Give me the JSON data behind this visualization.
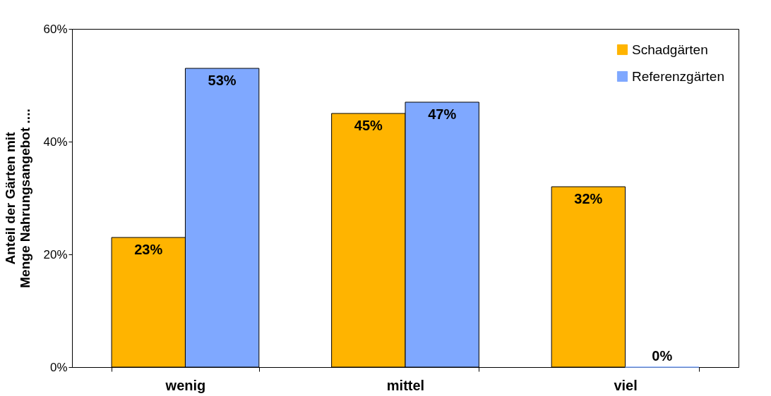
{
  "chart_data": {
    "type": "bar",
    "ylabel": "Anteil der Gärten mit\nMenge Nahrungsangebot ....",
    "categories": [
      "wenig",
      "mittel",
      "viel"
    ],
    "series": [
      {
        "name": "Schadgärten",
        "color": "#ffb400",
        "values": [
          23,
          45,
          32
        ],
        "value_labels": [
          "23%",
          "45%",
          "32%"
        ]
      },
      {
        "name": "Referenzgärten",
        "color": "#7fa8ff",
        "values": [
          53,
          47,
          0
        ],
        "value_labels": [
          "53%",
          "47%",
          "0%"
        ]
      }
    ],
    "ylim": [
      0,
      60
    ],
    "yticks": [
      {
        "value": 0,
        "label": "0%"
      },
      {
        "value": 20,
        "label": "20%"
      },
      {
        "value": 40,
        "label": "40%"
      },
      {
        "value": 60,
        "label": "60%"
      }
    ],
    "grid": false,
    "legend": "top right"
  }
}
